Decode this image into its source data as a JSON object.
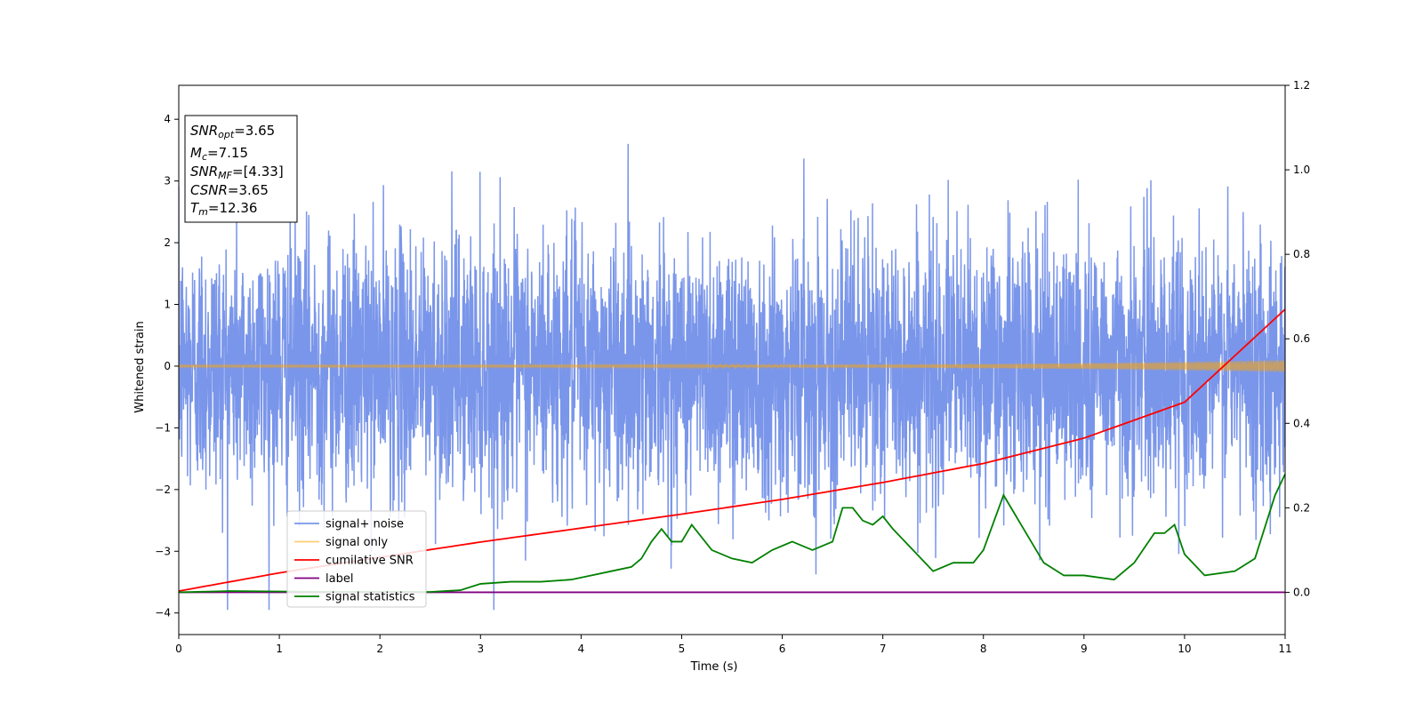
{
  "chart_data": {
    "type": "line",
    "xlabel": "Time (s)",
    "ylabel": "Whitened strain",
    "xlim": [
      0,
      11
    ],
    "ylim": [
      -4.35,
      4.55
    ],
    "y2lim": [
      -0.1,
      1.2
    ],
    "xticks": [
      0,
      1,
      2,
      3,
      4,
      5,
      6,
      7,
      8,
      9,
      10,
      11
    ],
    "yticks": [
      -4,
      -3,
      -2,
      -1,
      0,
      1,
      2,
      3,
      4
    ],
    "y2ticks": [
      "0.0",
      "0.2",
      "0.4",
      "0.6",
      "0.8",
      "1.0",
      "1.2"
    ],
    "grid": false,
    "legend_position": "lower-left",
    "stats_box": {
      "lines": [
        {
          "var": "SNR",
          "sub": "opt",
          "value": "=3.65"
        },
        {
          "var": "M",
          "sub": "c",
          "value": "=7.15"
        },
        {
          "var": "SNR",
          "sub": "MF",
          "value": "=[4.33]"
        },
        {
          "var": "CSNR",
          "sub": "",
          "value": "=3.65"
        },
        {
          "var": "T",
          "sub": "m",
          "value": "=12.36"
        }
      ]
    },
    "series": [
      {
        "name": "signal+ noise",
        "color": "#4169e1",
        "axis": "left",
        "kind": "noise",
        "std": 1.05,
        "duration": 11
      },
      {
        "name": "signal only",
        "color": "#ffa500",
        "axis": "left",
        "kind": "chirp",
        "amplitude_start": 0.01,
        "amplitude_end": 0.1
      },
      {
        "name": "cumilative SNR",
        "color": "#ff0000",
        "axis": "right",
        "x": [
          0,
          1,
          2,
          3,
          4,
          5,
          6,
          7,
          8,
          9,
          10,
          11
        ],
        "y": [
          0.003,
          0.046,
          0.083,
          0.119,
          0.152,
          0.185,
          0.22,
          0.26,
          0.305,
          0.365,
          0.45,
          0.67
        ]
      },
      {
        "name": "label",
        "color": "#800080",
        "axis": "right",
        "x": [
          0,
          11
        ],
        "y": [
          0.0,
          0.0
        ]
      },
      {
        "name": "signal statistics",
        "color": "#008000",
        "axis": "right",
        "x": [
          0,
          0.5,
          1,
          1.5,
          2,
          2.5,
          2.8,
          3,
          3.3,
          3.6,
          3.9,
          4.1,
          4.3,
          4.5,
          4.6,
          4.7,
          4.8,
          4.9,
          5,
          5.1,
          5.3,
          5.5,
          5.7,
          5.9,
          6.1,
          6.3,
          6.5,
          6.6,
          6.7,
          6.8,
          6.9,
          7.0,
          7.1,
          7.3,
          7.5,
          7.7,
          7.9,
          8.0,
          8.2,
          8.4,
          8.6,
          8.8,
          9.0,
          9.3,
          9.5,
          9.7,
          9.8,
          9.9,
          10.0,
          10.2,
          10.5,
          10.7,
          10.9,
          11.0
        ],
        "y": [
          0.0,
          0.003,
          0.002,
          0.001,
          0.001,
          0.001,
          0.005,
          0.02,
          0.025,
          0.025,
          0.03,
          0.04,
          0.05,
          0.06,
          0.08,
          0.12,
          0.15,
          0.12,
          0.12,
          0.16,
          0.1,
          0.08,
          0.07,
          0.1,
          0.12,
          0.1,
          0.12,
          0.2,
          0.2,
          0.17,
          0.16,
          0.18,
          0.15,
          0.1,
          0.05,
          0.07,
          0.07,
          0.1,
          0.23,
          0.15,
          0.07,
          0.04,
          0.04,
          0.03,
          0.07,
          0.14,
          0.14,
          0.16,
          0.09,
          0.04,
          0.05,
          0.08,
          0.23,
          0.28
        ]
      }
    ]
  }
}
